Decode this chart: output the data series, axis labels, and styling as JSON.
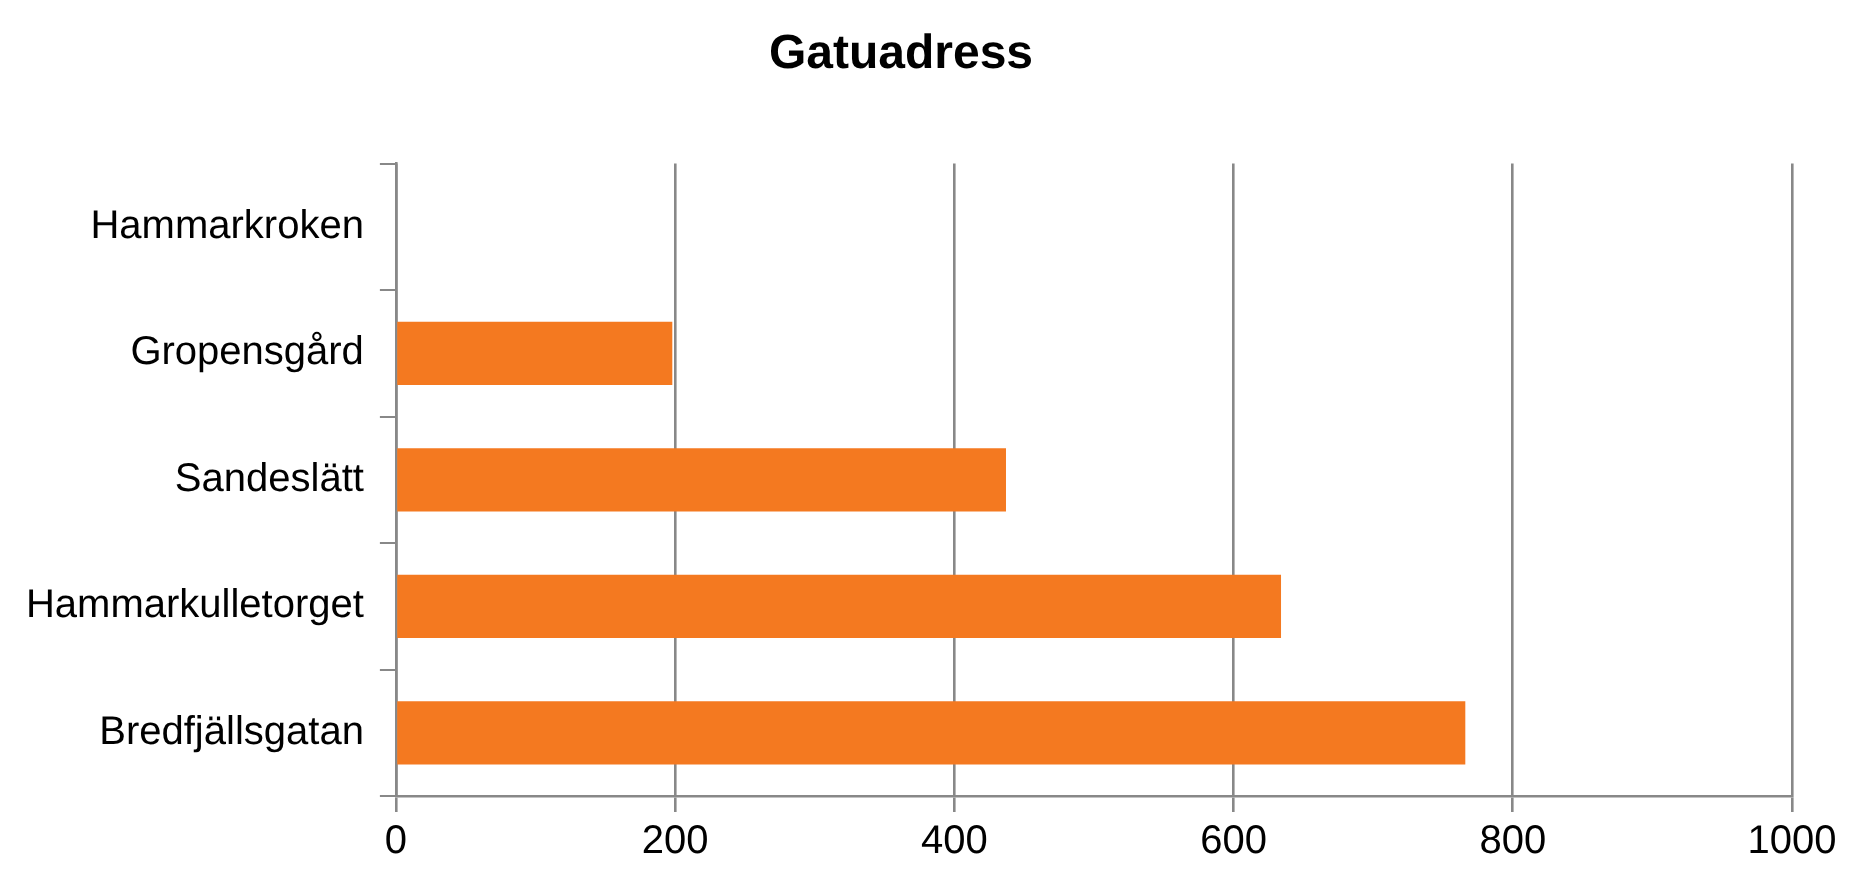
{
  "chart_data": {
    "type": "bar",
    "orientation": "horizontal",
    "title": "Gatuadress",
    "categories": [
      "Hammarkroken",
      "Gropensgård",
      "Sandeslätt",
      "Hammarkulletorget",
      "Bredfjällsgatan"
    ],
    "values": [
      null,
      198,
      437,
      634,
      766
    ],
    "color": "#f47920",
    "xlim": [
      0,
      1000
    ],
    "xticks": [
      0,
      200,
      400,
      600,
      800,
      1000
    ],
    "grid": "x",
    "legend": false
  }
}
